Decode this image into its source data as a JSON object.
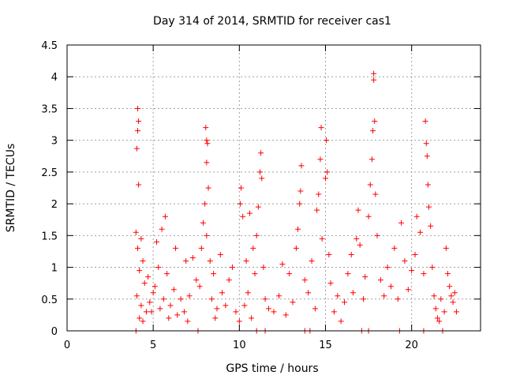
{
  "chart_data": {
    "type": "scatter",
    "title": "Day 314 of 2014, SRMTID for receiver cas1",
    "xlabel": "GPS time / hours",
    "ylabel": "SRMTID / TECUs",
    "xlim": [
      0,
      24
    ],
    "ylim": [
      0,
      4.5
    ],
    "xticks": [
      0,
      5,
      10,
      15,
      20
    ],
    "xtick_labels": [
      "0",
      "5",
      "10",
      "15",
      "20"
    ],
    "yticks": [
      0,
      0.5,
      1,
      1.5,
      2,
      2.5,
      3,
      3.5,
      4,
      4.5
    ],
    "ytick_labels": [
      "0",
      "0.5",
      "1",
      "1.5",
      "2",
      "2.5",
      "3",
      "3.5",
      "4",
      "4.5"
    ],
    "grid": true,
    "marker": "+",
    "marker_color": "#ff0000",
    "series": [
      {
        "name": "SRMTID",
        "points": [
          [
            4.1,
            3.5
          ],
          [
            4.15,
            3.3
          ],
          [
            4.1,
            3.15
          ],
          [
            4.05,
            2.87
          ],
          [
            4.15,
            2.3
          ],
          [
            4.0,
            1.55
          ],
          [
            4.3,
            1.45
          ],
          [
            4.1,
            1.3
          ],
          [
            4.4,
            1.1
          ],
          [
            4.2,
            0.95
          ],
          [
            4.5,
            0.75
          ],
          [
            4.05,
            0.55
          ],
          [
            4.3,
            0.4
          ],
          [
            4.6,
            0.3
          ],
          [
            4.2,
            0.2
          ],
          [
            4.8,
            0.45
          ],
          [
            5.0,
            0.6
          ],
          [
            4.9,
            0.3
          ],
          [
            4.4,
            0.15
          ],
          [
            4.7,
            0.85
          ],
          [
            5.2,
            1.4
          ],
          [
            5.5,
            1.6
          ],
          [
            5.3,
            1.0
          ],
          [
            5.1,
            0.7
          ],
          [
            5.6,
            0.5
          ],
          [
            5.4,
            0.35
          ],
          [
            5.8,
            0.9
          ],
          [
            5.7,
            1.8
          ],
          [
            6.0,
            0.4
          ],
          [
            6.2,
            0.65
          ],
          [
            6.4,
            0.25
          ],
          [
            6.6,
            0.5
          ],
          [
            6.8,
            0.3
          ],
          [
            7.0,
            0.15
          ],
          [
            7.1,
            0.55
          ],
          [
            6.9,
            1.1
          ],
          [
            7.3,
            1.15
          ],
          [
            7.5,
            0.8
          ],
          [
            5.9,
            0.2
          ],
          [
            6.3,
            1.3
          ],
          [
            8.05,
            3.2
          ],
          [
            8.1,
            3.0
          ],
          [
            8.15,
            2.95
          ],
          [
            8.1,
            2.65
          ],
          [
            8.2,
            2.25
          ],
          [
            8.0,
            2.0
          ],
          [
            7.9,
            1.7
          ],
          [
            8.1,
            1.5
          ],
          [
            7.8,
            1.3
          ],
          [
            8.3,
            1.1
          ],
          [
            8.5,
            0.9
          ],
          [
            7.7,
            0.7
          ],
          [
            8.4,
            0.5
          ],
          [
            8.7,
            0.35
          ],
          [
            9.0,
            0.6
          ],
          [
            8.9,
            1.2
          ],
          [
            9.2,
            0.4
          ],
          [
            8.6,
            0.2
          ],
          [
            9.4,
            0.8
          ],
          [
            9.6,
            1.0
          ],
          [
            9.8,
            0.3
          ],
          [
            10.0,
            0.15
          ],
          [
            10.1,
            2.25
          ],
          [
            10.05,
            2.0
          ],
          [
            10.2,
            1.8
          ],
          [
            10.4,
            1.1
          ],
          [
            10.5,
            0.6
          ],
          [
            10.6,
            1.85
          ],
          [
            10.8,
            1.3
          ],
          [
            11.0,
            1.5
          ],
          [
            11.1,
            1.95
          ],
          [
            11.2,
            2.5
          ],
          [
            11.25,
            2.8
          ],
          [
            11.3,
            2.4
          ],
          [
            10.9,
            0.9
          ],
          [
            11.5,
            0.5
          ],
          [
            11.7,
            0.35
          ],
          [
            10.3,
            0.4
          ],
          [
            11.4,
            1.0
          ],
          [
            10.7,
            0.2
          ],
          [
            12.0,
            0.3
          ],
          [
            12.3,
            0.55
          ],
          [
            12.5,
            1.05
          ],
          [
            12.7,
            0.25
          ],
          [
            12.9,
            0.9
          ],
          [
            13.1,
            0.45
          ],
          [
            13.3,
            1.3
          ],
          [
            13.4,
            1.6
          ],
          [
            13.5,
            2.0
          ],
          [
            13.55,
            2.2
          ],
          [
            13.6,
            2.6
          ],
          [
            13.8,
            0.8
          ],
          [
            14.0,
            0.6
          ],
          [
            14.2,
            1.1
          ],
          [
            14.4,
            0.35
          ],
          [
            14.5,
            1.9
          ],
          [
            14.6,
            2.15
          ],
          [
            14.7,
            2.7
          ],
          [
            14.75,
            3.2
          ],
          [
            14.8,
            1.45
          ],
          [
            15.0,
            2.4
          ],
          [
            15.05,
            3.0
          ],
          [
            15.1,
            2.5
          ],
          [
            15.2,
            1.2
          ],
          [
            15.3,
            0.75
          ],
          [
            15.5,
            0.3
          ],
          [
            15.7,
            0.55
          ],
          [
            15.9,
            0.15
          ],
          [
            16.1,
            0.45
          ],
          [
            16.3,
            0.9
          ],
          [
            16.5,
            1.2
          ],
          [
            16.6,
            0.6
          ],
          [
            16.8,
            1.45
          ],
          [
            16.9,
            1.9
          ],
          [
            17.0,
            1.35
          ],
          [
            17.2,
            0.5
          ],
          [
            17.3,
            0.85
          ],
          [
            17.5,
            1.8
          ],
          [
            17.6,
            2.3
          ],
          [
            17.7,
            2.7
          ],
          [
            17.8,
            3.95
          ],
          [
            17.8,
            4.05
          ],
          [
            17.85,
            3.3
          ],
          [
            17.75,
            3.15
          ],
          [
            17.9,
            2.15
          ],
          [
            18.0,
            1.5
          ],
          [
            18.2,
            0.8
          ],
          [
            18.4,
            0.55
          ],
          [
            18.6,
            1.0
          ],
          [
            18.8,
            0.7
          ],
          [
            19.0,
            1.3
          ],
          [
            19.2,
            0.5
          ],
          [
            19.4,
            1.7
          ],
          [
            19.6,
            1.1
          ],
          [
            19.8,
            0.65
          ],
          [
            20.0,
            0.95
          ],
          [
            20.2,
            1.2
          ],
          [
            20.3,
            1.8
          ],
          [
            20.5,
            1.55
          ],
          [
            20.7,
            0.9
          ],
          [
            20.8,
            3.3
          ],
          [
            20.85,
            2.95
          ],
          [
            20.9,
            2.75
          ],
          [
            20.95,
            2.3
          ],
          [
            21.0,
            1.95
          ],
          [
            21.1,
            1.65
          ],
          [
            21.2,
            1.0
          ],
          [
            21.3,
            0.55
          ],
          [
            21.4,
            0.35
          ],
          [
            21.5,
            0.2
          ],
          [
            21.7,
            0.5
          ],
          [
            21.9,
            0.3
          ],
          [
            22.0,
            1.3
          ],
          [
            22.1,
            0.9
          ],
          [
            22.2,
            0.7
          ],
          [
            22.4,
            0.45
          ],
          [
            22.5,
            0.6
          ],
          [
            22.6,
            0.3
          ],
          [
            21.6,
            0.15
          ],
          [
            22.3,
            0.55
          ],
          [
            4.0,
            0.0
          ],
          [
            7.6,
            0.0
          ],
          [
            11.0,
            0.0
          ],
          [
            11.5,
            0.0
          ],
          [
            13.8,
            0.0
          ],
          [
            14.1,
            0.0
          ],
          [
            17.1,
            0.0
          ],
          [
            17.5,
            0.0
          ],
          [
            19.3,
            0.0
          ],
          [
            20.7,
            0.0
          ],
          [
            21.8,
            0.0
          ]
        ]
      }
    ]
  }
}
